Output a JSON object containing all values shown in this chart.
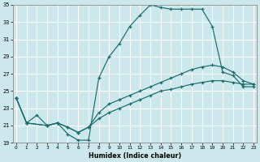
{
  "xlabel": "Humidex (Indice chaleur)",
  "bg_color": "#cce8ec",
  "line_color": "#1a6b6b",
  "grid_color": "#ffffff",
  "xlim_min": -0.3,
  "xlim_max": 23.3,
  "ylim_min": 19,
  "ylim_max": 35,
  "xticks": [
    0,
    1,
    2,
    3,
    4,
    5,
    6,
    7,
    8,
    9,
    10,
    11,
    12,
    13,
    14,
    15,
    16,
    17,
    18,
    19,
    20,
    21,
    22,
    23
  ],
  "yticks": [
    19,
    21,
    23,
    25,
    27,
    29,
    31,
    33,
    35
  ],
  "line1": {
    "x": [
      0,
      1,
      2,
      3,
      4,
      5,
      6,
      7,
      8,
      9,
      10,
      11,
      12,
      13,
      14,
      15,
      16,
      17,
      18,
      19,
      20,
      21,
      22,
      23
    ],
    "y": [
      24.2,
      21.3,
      22.2,
      21.0,
      21.3,
      20.0,
      19.3,
      19.3,
      26.5,
      29.0,
      30.5,
      32.5,
      33.8,
      35.0,
      34.7,
      34.5,
      34.5,
      34.5,
      34.5,
      32.5,
      27.2,
      26.8,
      25.5,
      25.5
    ]
  },
  "line2": {
    "x": [
      0,
      1,
      3,
      4,
      5,
      6,
      7,
      8,
      9,
      10,
      11,
      12,
      13,
      14,
      15,
      16,
      17,
      18,
      19,
      20,
      21,
      22,
      23
    ],
    "y": [
      24.2,
      21.3,
      21.0,
      21.3,
      20.8,
      20.2,
      20.8,
      22.5,
      23.5,
      24.0,
      24.5,
      25.0,
      25.5,
      26.0,
      26.5,
      27.0,
      27.5,
      27.8,
      28.0,
      27.8,
      27.2,
      26.2,
      25.8
    ]
  },
  "line3": {
    "x": [
      0,
      1,
      3,
      4,
      5,
      6,
      7,
      8,
      9,
      10,
      11,
      12,
      13,
      14,
      15,
      16,
      17,
      18,
      19,
      20,
      21,
      22,
      23
    ],
    "y": [
      24.2,
      21.3,
      21.0,
      21.3,
      20.8,
      20.2,
      20.8,
      21.8,
      22.5,
      23.0,
      23.5,
      24.0,
      24.5,
      25.0,
      25.2,
      25.5,
      25.8,
      26.0,
      26.2,
      26.2,
      26.0,
      25.8,
      25.8
    ]
  }
}
